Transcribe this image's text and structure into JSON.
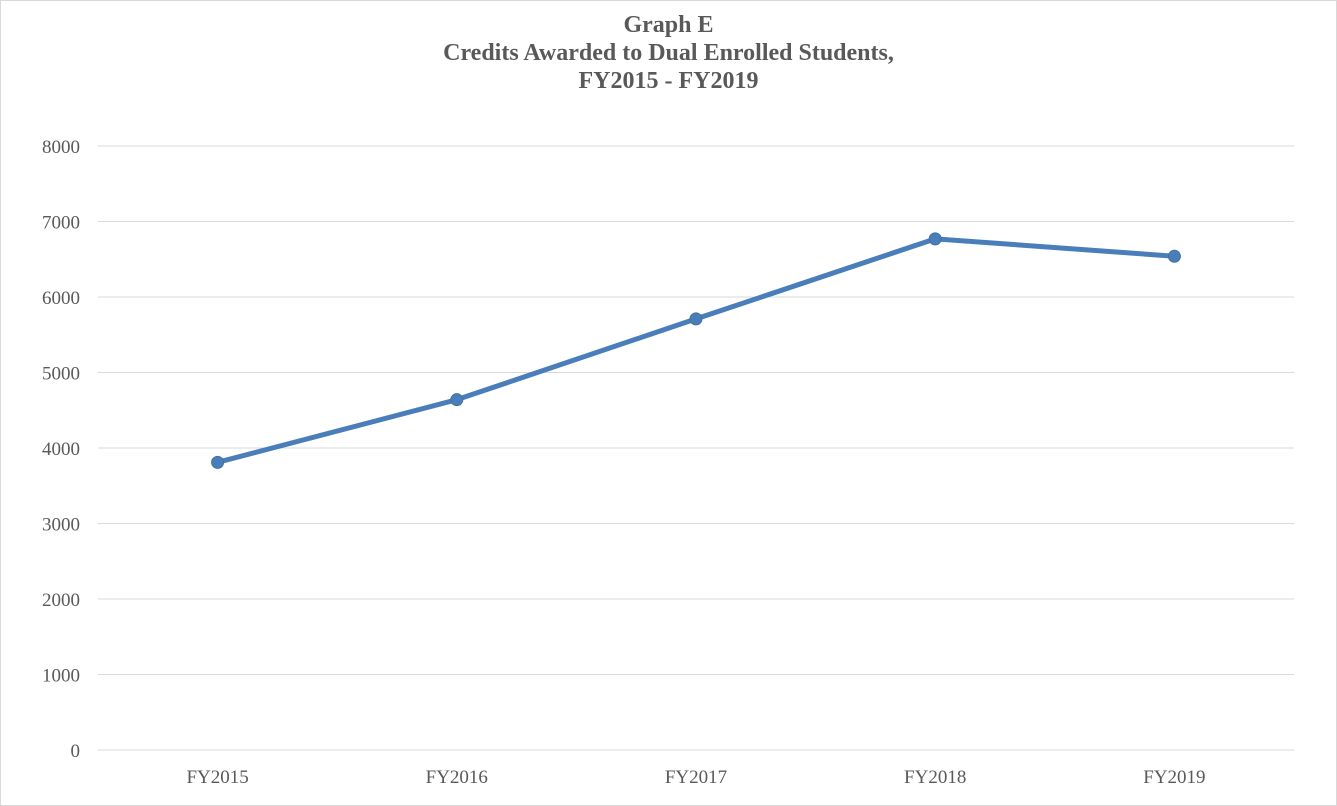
{
  "chart_data": {
    "type": "line",
    "title_lines": [
      "Graph E",
      "Credits Awarded to Dual Enrolled Students,",
      "FY2015 - FY2019"
    ],
    "categories": [
      "FY2015",
      "FY2016",
      "FY2017",
      "FY2018",
      "FY2019"
    ],
    "series": [
      {
        "values": [
          3810,
          4640,
          5710,
          6770,
          6540
        ],
        "color": "#4a7ebb"
      }
    ],
    "ylim": [
      0,
      8000
    ],
    "yticks": [
      0,
      1000,
      2000,
      3000,
      4000,
      5000,
      6000,
      7000,
      8000
    ],
    "grid": true,
    "legend": "none"
  }
}
